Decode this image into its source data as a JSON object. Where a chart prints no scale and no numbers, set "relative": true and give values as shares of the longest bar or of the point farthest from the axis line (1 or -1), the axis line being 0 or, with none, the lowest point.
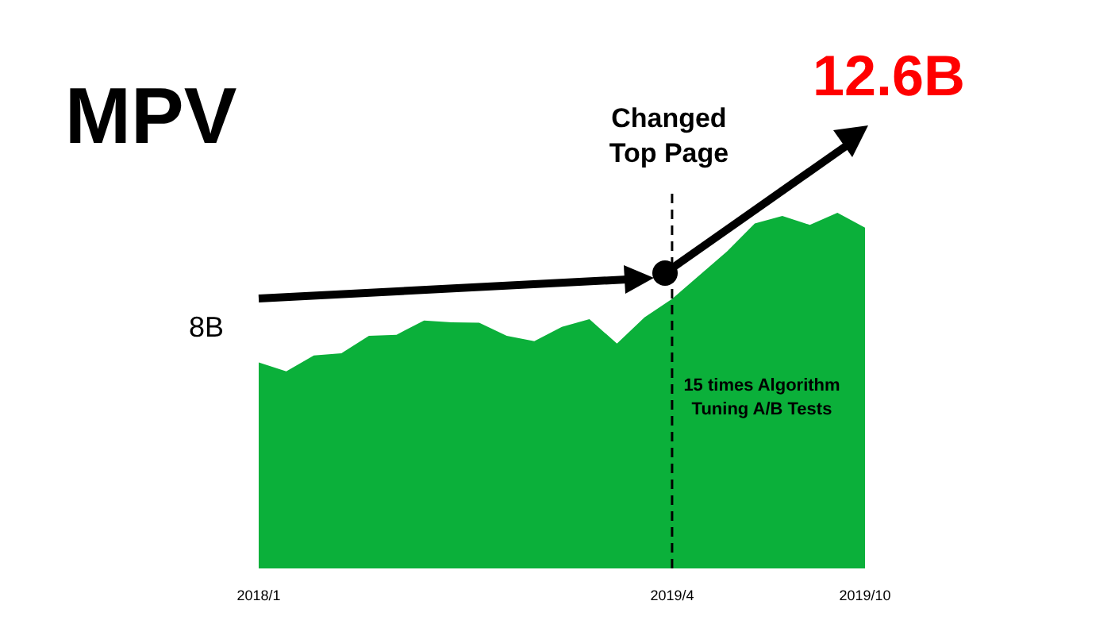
{
  "chart_data": {
    "type": "area",
    "title": "MPV",
    "relative": true,
    "categories": [
      "2018/1",
      null,
      null,
      null,
      null,
      null,
      null,
      null,
      null,
      null,
      null,
      null,
      null,
      null,
      null,
      "2019/4",
      null,
      null,
      null,
      null,
      null,
      null,
      "2019/10"
    ],
    "series": [
      {
        "color": "#0bb03a",
        "values": [
          0.579,
          0.554,
          0.599,
          0.605,
          0.654,
          0.657,
          0.697,
          0.692,
          0.691,
          0.654,
          0.639,
          0.679,
          0.701,
          0.632,
          0.706,
          0.758,
          0.825,
          0.892,
          0.97,
          0.991,
          0.966,
          1.0,
          0.958
        ]
      }
    ],
    "ref_lines": [
      {
        "axis": "x",
        "value": "2019/4",
        "label": "Changed Top Page",
        "color": "#000000",
        "line_style": "dashed"
      }
    ],
    "annotations": [
      "8B",
      "12.6B",
      "15 times Algorithm Tuning A/B Tests"
    ],
    "xlabel": null
  }
}
